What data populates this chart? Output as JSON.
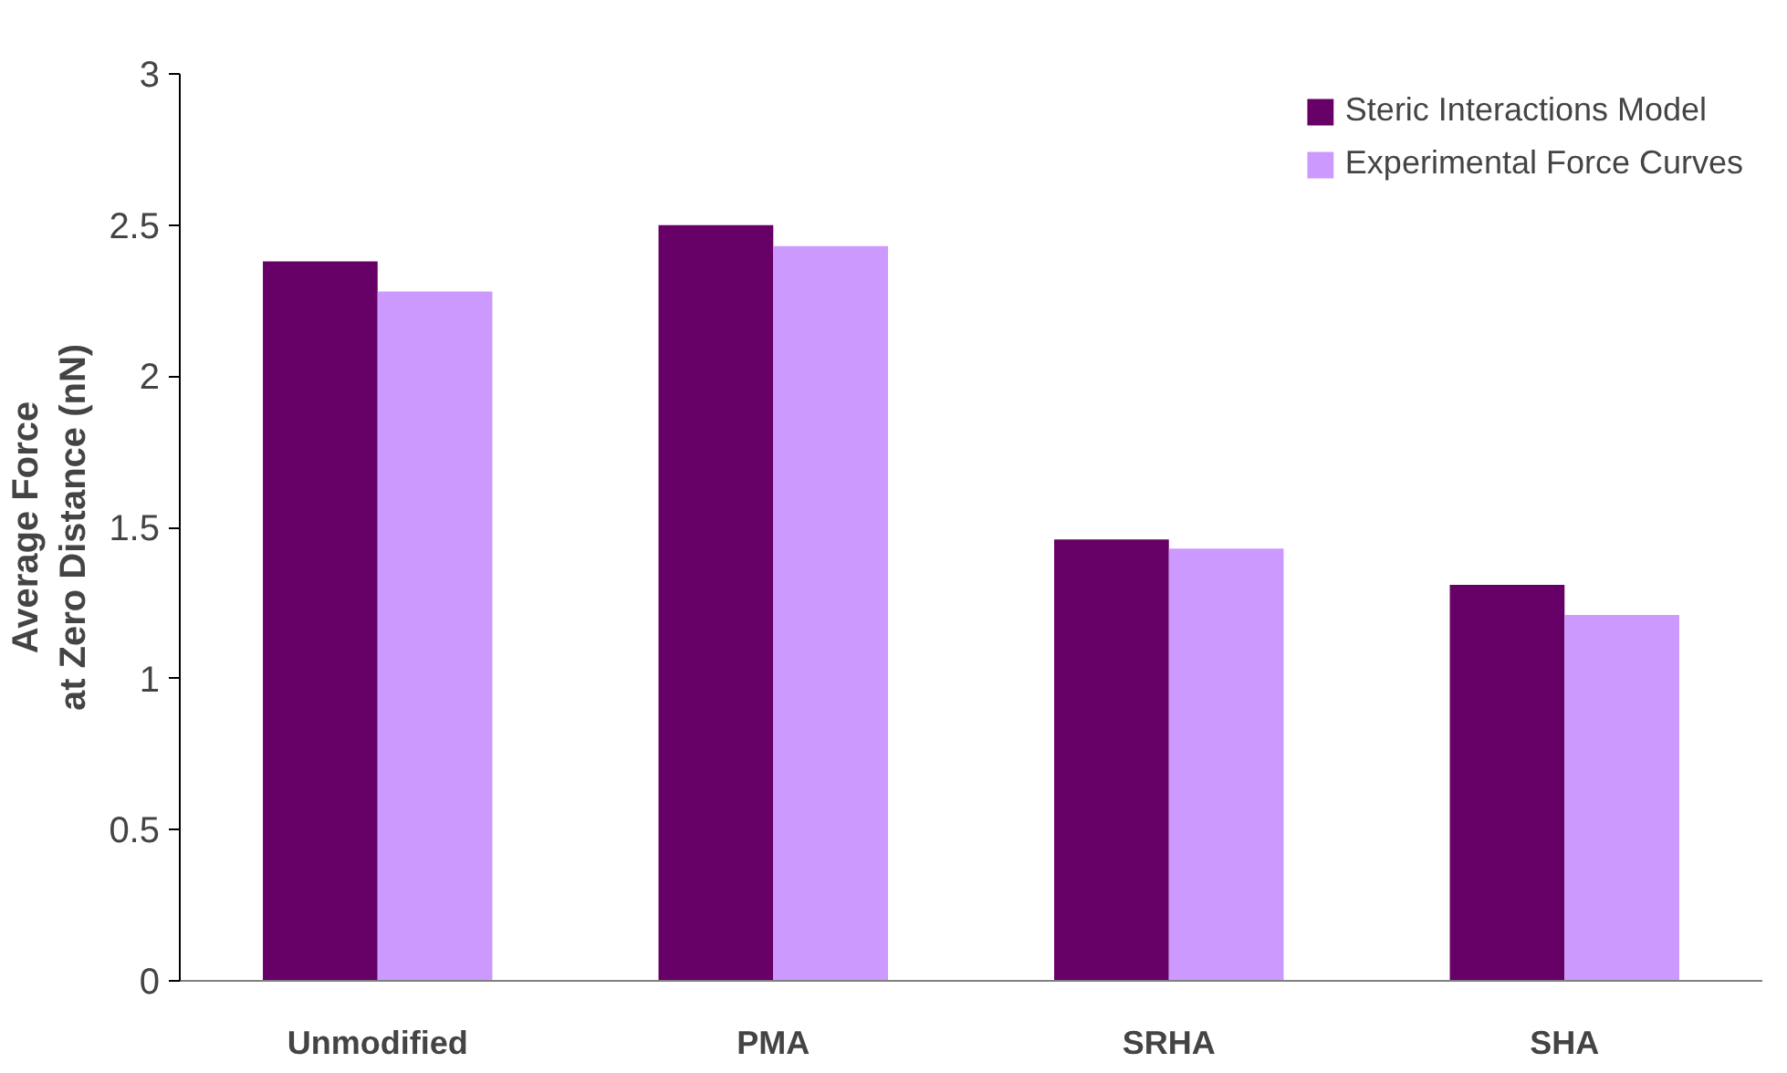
{
  "chart_data": {
    "type": "bar",
    "ylabel": "Average Force\nat Zero Distance (nN)",
    "categories": [
      "Unmodified",
      "PMA",
      "SRHA",
      "SHA"
    ],
    "series": [
      {
        "name": "Steric Interactions Model",
        "color": "#660066",
        "values": [
          2.38,
          2.5,
          1.46,
          1.31
        ]
      },
      {
        "name": "Experimental Force Curves",
        "color": "#cc99ff",
        "values": [
          2.28,
          2.43,
          1.43,
          1.21
        ]
      }
    ],
    "ylim": [
      0,
      3
    ],
    "yticks": [
      0,
      0.5,
      1,
      1.5,
      2,
      2.5,
      3
    ],
    "grid": false,
    "legend": "top right"
  }
}
